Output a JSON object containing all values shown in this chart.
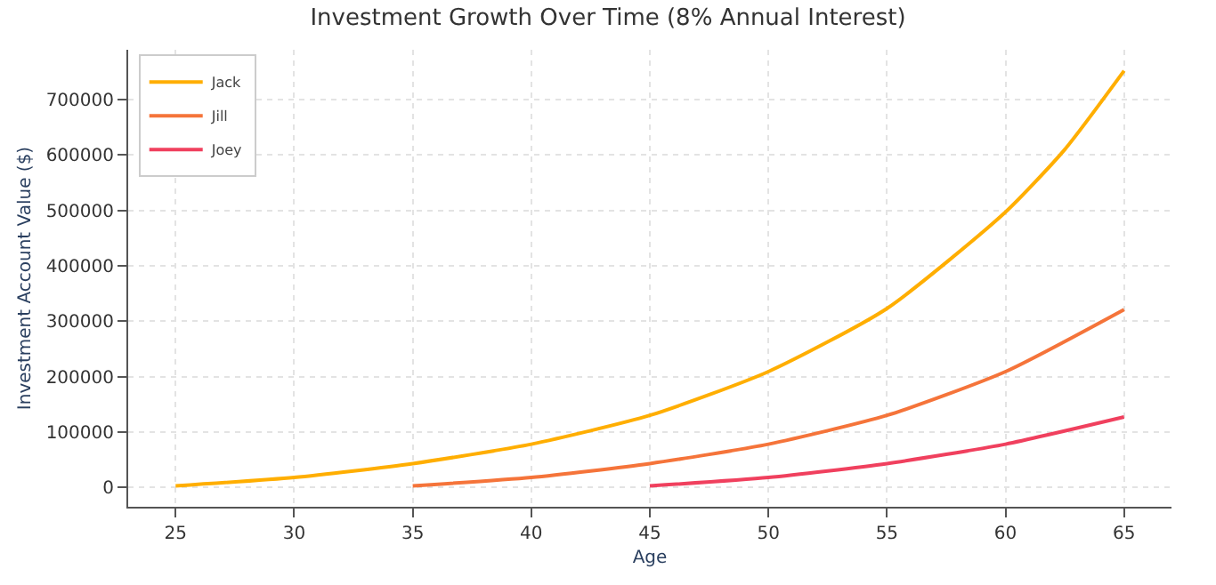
{
  "chart_data": {
    "type": "line",
    "title": "Investment Growth Over Time (8% Annual Interest)",
    "xlabel": "Age",
    "ylabel": "Investment Account Value ($)",
    "xlim": [
      23,
      67
    ],
    "xticks": [
      25,
      30,
      35,
      40,
      45,
      50,
      55,
      60,
      65
    ],
    "ylim": [
      -35000,
      790000
    ],
    "yticks": [
      0,
      100000,
      200000,
      300000,
      400000,
      500000,
      600000,
      700000
    ],
    "grid": true,
    "legend": "top left",
    "line_style": "solid",
    "marker": "none",
    "series": [
      {
        "name": "Jack",
        "color": "#ffae00",
        "x": [
          25,
          30,
          35,
          40,
          45,
          50,
          55,
          60,
          62.5,
          65
        ],
        "values": [
          2700,
          18000,
          43000,
          78000,
          130000,
          209000,
          323000,
          497000,
          610000,
          752000
        ]
      },
      {
        "name": "Jill",
        "color": "#f5743a",
        "x": [
          35,
          40,
          45,
          50,
          55,
          60,
          65
        ],
        "values": [
          2700,
          18000,
          43000,
          78000,
          130000,
          209000,
          321000
        ]
      },
      {
        "name": "Joey",
        "color": "#f0405e",
        "x": [
          45,
          50,
          55,
          60,
          65
        ],
        "values": [
          2700,
          18000,
          43000,
          78000,
          127000
        ]
      }
    ]
  }
}
